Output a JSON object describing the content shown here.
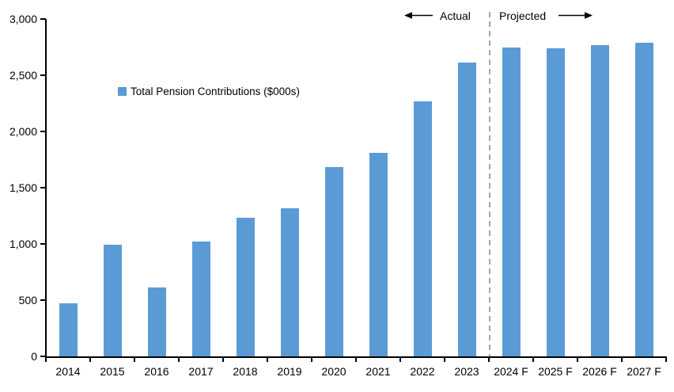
{
  "chart_data": {
    "type": "bar",
    "title": "",
    "legend": "Total Pension Contributions ($000s)",
    "categories": [
      "2014",
      "2015",
      "2016",
      "2017",
      "2018",
      "2019",
      "2020",
      "2021",
      "2022",
      "2023",
      "2024 F",
      "2025 F",
      "2026 F",
      "2027 F"
    ],
    "values": [
      470,
      990,
      610,
      1020,
      1230,
      1320,
      1680,
      1810,
      2270,
      2610,
      2750,
      2740,
      2770,
      2790
    ],
    "ylim": [
      0,
      3000
    ],
    "ytick_interval": 500,
    "ytick_labels": [
      "0",
      "500",
      "1,000",
      "1,500",
      "2,000",
      "2,500",
      "3,000"
    ],
    "xlabel": "",
    "ylabel": "",
    "grid": false,
    "legend_position": "upper-left-inside",
    "bar_color": "#5B9BD5",
    "axis_color": "#000000",
    "divider_color": "#A6A6A6",
    "annotations": {
      "actual_label": "Actual",
      "projected_label": "Projected",
      "divider_between": [
        "2023",
        "2024 F"
      ]
    }
  }
}
